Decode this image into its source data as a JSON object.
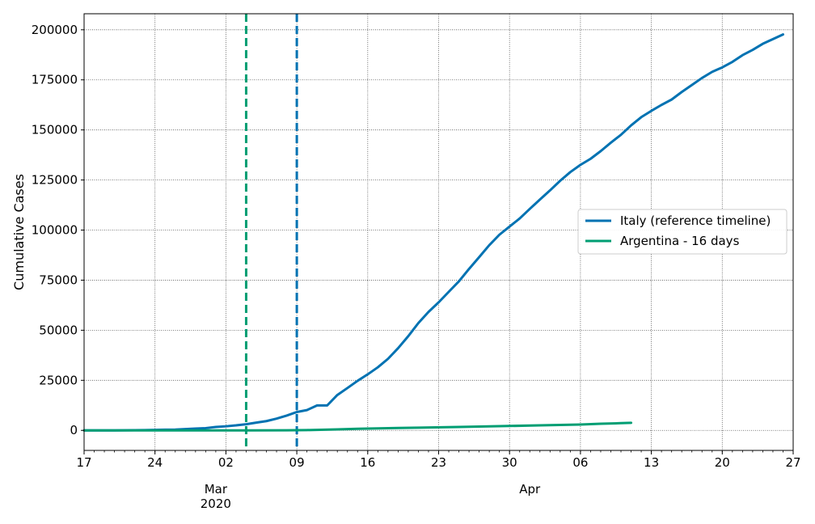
{
  "chart_data": {
    "type": "line",
    "ylabel": "Cumulative Cases",
    "xlabel": "",
    "title": "",
    "ylim": [
      -10000,
      208000
    ],
    "xlim": [
      "2020-02-17",
      "2020-04-27"
    ],
    "y_ticks": [
      0,
      25000,
      50000,
      75000,
      100000,
      125000,
      150000,
      175000,
      200000
    ],
    "x_major_ticks": [
      {
        "date": "2020-02-17",
        "label": "17"
      },
      {
        "date": "2020-02-24",
        "label": "24"
      },
      {
        "date": "2020-03-02",
        "label": "02"
      },
      {
        "date": "2020-03-09",
        "label": "09"
      },
      {
        "date": "2020-03-16",
        "label": "16"
      },
      {
        "date": "2020-03-23",
        "label": "23"
      },
      {
        "date": "2020-03-30",
        "label": "30"
      },
      {
        "date": "2020-04-06",
        "label": "06"
      },
      {
        "date": "2020-04-13",
        "label": "13"
      },
      {
        "date": "2020-04-20",
        "label": "20"
      },
      {
        "date": "2020-04-27",
        "label": "27"
      }
    ],
    "x_month_labels": [
      {
        "date": "2020-03-01",
        "label": "Mar",
        "sublabel": "2020"
      },
      {
        "date": "2020-04-01",
        "label": "Apr",
        "sublabel": ""
      }
    ],
    "grid": true,
    "legend_position": "center-right",
    "series": [
      {
        "name": "Italy (reference timeline)",
        "color": "#0072b2",
        "points": [
          [
            "2020-02-17",
            3
          ],
          [
            "2020-02-20",
            3
          ],
          [
            "2020-02-21",
            20
          ],
          [
            "2020-02-22",
            79
          ],
          [
            "2020-02-23",
            150
          ],
          [
            "2020-02-24",
            229
          ],
          [
            "2020-02-25",
            322
          ],
          [
            "2020-02-26",
            400
          ],
          [
            "2020-02-27",
            650
          ],
          [
            "2020-02-28",
            888
          ],
          [
            "2020-02-29",
            1128
          ],
          [
            "2020-03-01",
            1694
          ],
          [
            "2020-03-02",
            2036
          ],
          [
            "2020-03-03",
            2502
          ],
          [
            "2020-03-04",
            3089
          ],
          [
            "2020-03-05",
            3858
          ],
          [
            "2020-03-06",
            4636
          ],
          [
            "2020-03-07",
            5883
          ],
          [
            "2020-03-08",
            7375
          ],
          [
            "2020-03-09",
            9172
          ],
          [
            "2020-03-10",
            10149
          ],
          [
            "2020-03-11",
            12462
          ],
          [
            "2020-03-12",
            12462
          ],
          [
            "2020-03-13",
            17660
          ],
          [
            "2020-03-14",
            21157
          ],
          [
            "2020-03-15",
            24747
          ],
          [
            "2020-03-16",
            27980
          ],
          [
            "2020-03-17",
            31506
          ],
          [
            "2020-03-18",
            35713
          ],
          [
            "2020-03-19",
            41035
          ],
          [
            "2020-03-20",
            47021
          ],
          [
            "2020-03-21",
            53578
          ],
          [
            "2020-03-22",
            59138
          ],
          [
            "2020-03-23",
            63927
          ],
          [
            "2020-03-24",
            69176
          ],
          [
            "2020-03-25",
            74386
          ],
          [
            "2020-03-26",
            80589
          ],
          [
            "2020-03-27",
            86498
          ],
          [
            "2020-03-28",
            92472
          ],
          [
            "2020-03-29",
            97689
          ],
          [
            "2020-03-30",
            101739
          ],
          [
            "2020-03-31",
            105792
          ],
          [
            "2020-04-01",
            110574
          ],
          [
            "2020-04-02",
            115242
          ],
          [
            "2020-04-03",
            119827
          ],
          [
            "2020-04-04",
            124632
          ],
          [
            "2020-04-05",
            128948
          ],
          [
            "2020-04-06",
            132547
          ],
          [
            "2020-04-07",
            135586
          ],
          [
            "2020-04-08",
            139422
          ],
          [
            "2020-04-09",
            143626
          ],
          [
            "2020-04-10",
            147577
          ],
          [
            "2020-04-11",
            152271
          ],
          [
            "2020-04-12",
            156363
          ],
          [
            "2020-04-13",
            159516
          ],
          [
            "2020-04-14",
            162488
          ],
          [
            "2020-04-15",
            165155
          ],
          [
            "2020-04-16",
            168941
          ],
          [
            "2020-04-17",
            172434
          ],
          [
            "2020-04-18",
            175925
          ],
          [
            "2020-04-19",
            178972
          ],
          [
            "2020-04-20",
            181228
          ],
          [
            "2020-04-21",
            183957
          ],
          [
            "2020-04-22",
            187327
          ],
          [
            "2020-04-23",
            189973
          ],
          [
            "2020-04-24",
            192994
          ],
          [
            "2020-04-25",
            195351
          ],
          [
            "2020-04-26",
            197675
          ]
        ]
      },
      {
        "name": "Argentina - 16 days",
        "color": "#009e73",
        "points": [
          [
            "2020-02-17",
            0
          ],
          [
            "2020-03-04",
            1
          ],
          [
            "2020-03-08",
            50
          ],
          [
            "2020-03-10",
            150
          ],
          [
            "2020-03-13",
            500
          ],
          [
            "2020-03-15",
            800
          ],
          [
            "2020-03-17",
            1000
          ],
          [
            "2020-03-19",
            1200
          ],
          [
            "2020-03-21",
            1350
          ],
          [
            "2020-03-25",
            1700
          ],
          [
            "2020-03-29",
            2100
          ],
          [
            "2020-04-02",
            2500
          ],
          [
            "2020-04-06",
            2900
          ],
          [
            "2020-04-08",
            3300
          ],
          [
            "2020-04-10",
            3600
          ],
          [
            "2020-04-11",
            3800
          ]
        ]
      }
    ],
    "vertical_markers": [
      {
        "date": "2020-03-04",
        "color": "#009e73",
        "style": "dashed"
      },
      {
        "date": "2020-03-09",
        "color": "#0072b2",
        "style": "dashed"
      }
    ]
  }
}
